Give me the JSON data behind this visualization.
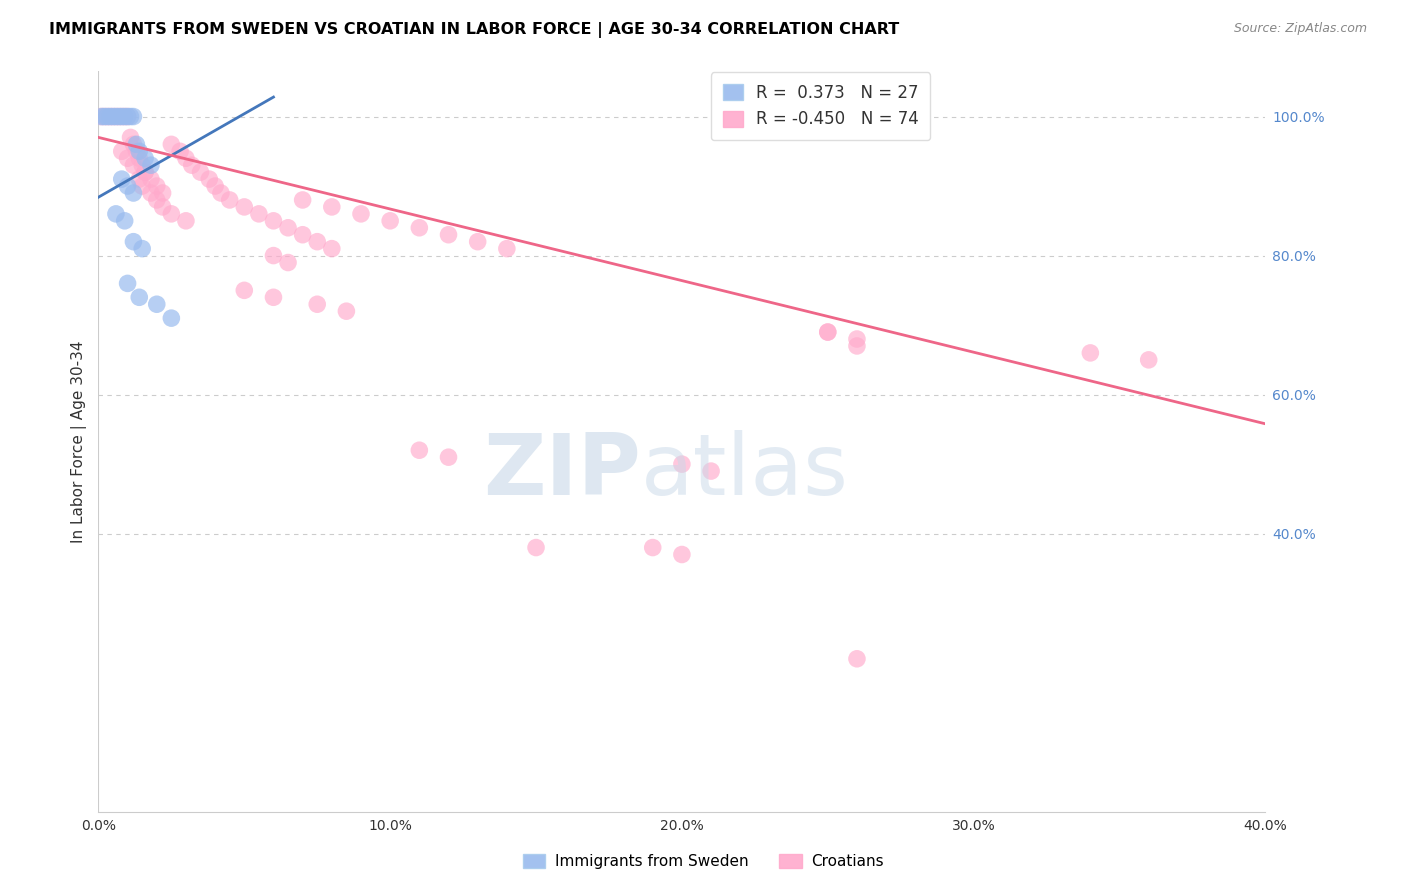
{
  "title": "IMMIGRANTS FROM SWEDEN VS CROATIAN IN LABOR FORCE | AGE 30-34 CORRELATION CHART",
  "source": "Source: ZipAtlas.com",
  "ylabel": "In Labor Force | Age 30-34",
  "xlim": [
    0.0,
    0.4
  ],
  "ylim": [
    0.0,
    1.065
  ],
  "legend_blue_r": "0.373",
  "legend_blue_n": "27",
  "legend_pink_r": "-0.450",
  "legend_pink_n": "74",
  "blue_scatter_color": "#99BBEE",
  "pink_scatter_color": "#FFAACC",
  "blue_line_color": "#4477BB",
  "pink_line_color": "#EE6688",
  "grid_color": "#CCCCCC",
  "sweden_x": [
    0.001,
    0.002,
    0.003,
    0.004,
    0.005,
    0.006,
    0.007,
    0.008,
    0.009,
    0.01,
    0.011,
    0.012,
    0.013,
    0.014,
    0.016,
    0.018,
    0.008,
    0.01,
    0.012,
    0.006,
    0.009,
    0.012,
    0.015,
    0.01,
    0.014,
    0.02,
    0.025
  ],
  "sweden_y": [
    1.0,
    1.0,
    1.0,
    1.0,
    1.0,
    1.0,
    1.0,
    1.0,
    1.0,
    1.0,
    1.0,
    1.0,
    0.96,
    0.95,
    0.94,
    0.93,
    0.91,
    0.9,
    0.89,
    0.86,
    0.85,
    0.82,
    0.81,
    0.76,
    0.74,
    0.73,
    0.71
  ],
  "croatian_x": [
    0.001,
    0.002,
    0.003,
    0.004,
    0.005,
    0.006,
    0.007,
    0.008,
    0.009,
    0.01,
    0.011,
    0.012,
    0.013,
    0.014,
    0.015,
    0.016,
    0.008,
    0.01,
    0.012,
    0.014,
    0.016,
    0.018,
    0.02,
    0.022,
    0.025,
    0.028,
    0.03,
    0.032,
    0.035,
    0.038,
    0.04,
    0.042,
    0.045,
    0.05,
    0.055,
    0.06,
    0.065,
    0.07,
    0.075,
    0.08,
    0.06,
    0.065,
    0.07,
    0.08,
    0.09,
    0.1,
    0.11,
    0.12,
    0.13,
    0.14,
    0.015,
    0.018,
    0.02,
    0.022,
    0.025,
    0.03,
    0.05,
    0.06,
    0.075,
    0.085,
    0.11,
    0.12,
    0.25,
    0.26,
    0.25,
    0.26,
    0.2,
    0.21,
    0.19,
    0.2,
    0.34,
    0.36,
    0.15,
    0.26
  ],
  "croatian_y": [
    1.0,
    1.0,
    1.0,
    1.0,
    1.0,
    1.0,
    1.0,
    1.0,
    1.0,
    1.0,
    0.97,
    0.96,
    0.95,
    0.94,
    0.93,
    0.92,
    0.95,
    0.94,
    0.93,
    0.91,
    0.92,
    0.91,
    0.9,
    0.89,
    0.96,
    0.95,
    0.94,
    0.93,
    0.92,
    0.91,
    0.9,
    0.89,
    0.88,
    0.87,
    0.86,
    0.85,
    0.84,
    0.83,
    0.82,
    0.81,
    0.8,
    0.79,
    0.88,
    0.87,
    0.86,
    0.85,
    0.84,
    0.83,
    0.82,
    0.81,
    0.9,
    0.89,
    0.88,
    0.87,
    0.86,
    0.85,
    0.75,
    0.74,
    0.73,
    0.72,
    0.52,
    0.51,
    0.69,
    0.67,
    0.69,
    0.68,
    0.5,
    0.49,
    0.38,
    0.37,
    0.66,
    0.65,
    0.38,
    0.22
  ],
  "blue_trendline": [
    0.0,
    0.06,
    0.884,
    1.028
  ],
  "pink_trendline": [
    0.0,
    0.4,
    0.97,
    0.558
  ]
}
